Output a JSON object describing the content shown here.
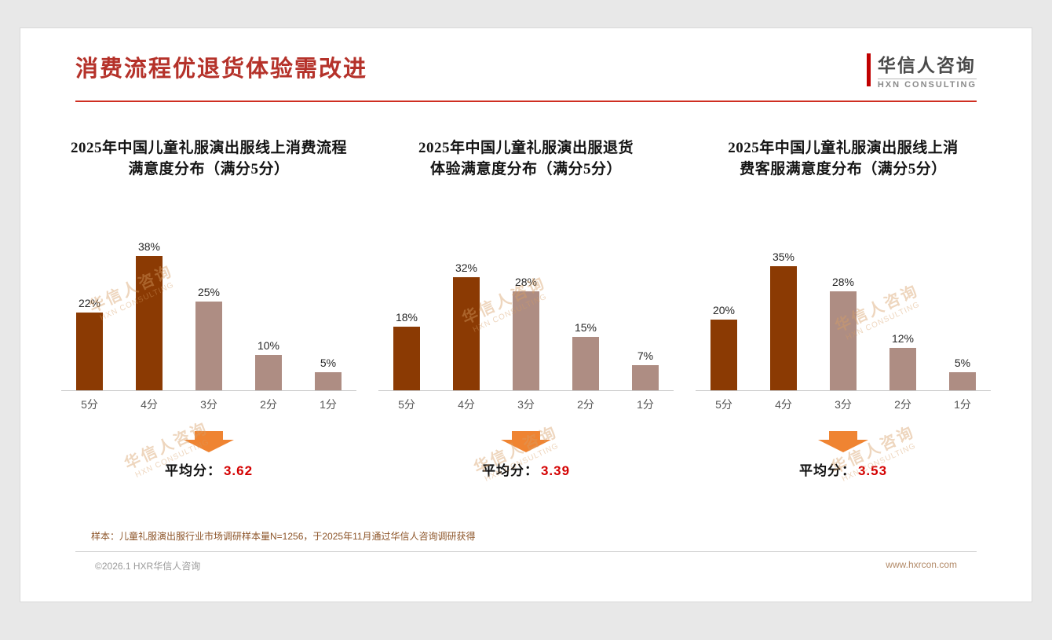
{
  "page": {
    "title": "消费流程优退货体验需改进",
    "logo": {
      "name": "华信人咨询",
      "sub": "HXN CONSULTING"
    },
    "watermark": {
      "line1": "华信人咨询",
      "line2": "HXN CONSULTING"
    },
    "footnote": "样本：儿童礼服演出服行业市场调研样本量N=1256，于2025年11月通过华信人咨询调研获得",
    "copyright": "©2026.1 HXR华信人咨询",
    "website": "www.hxrcon.com"
  },
  "colors": {
    "title": "#b5322a",
    "bar_dark": "#8b3a03",
    "bar_light": "#ae8d83",
    "arrow": "#ef8432",
    "avg_number": "#d40000"
  },
  "chart_data": [
    {
      "type": "bar",
      "title": "2025年中国儿童礼服演出服线上消费流程满意度分布（满分5分）",
      "title_lines": [
        "2025年中国儿童礼服演出服线上消费流程",
        "满意度分布（满分5分）"
      ],
      "categories": [
        "5分",
        "4分",
        "3分",
        "2分",
        "1分"
      ],
      "values": [
        22,
        38,
        25,
        10,
        5
      ],
      "unit": "%",
      "ylim": [
        0,
        40
      ],
      "grid": false,
      "bar_colors": [
        "dark",
        "dark",
        "light",
        "light",
        "light"
      ],
      "average_label": "平均分：",
      "average": "3.62"
    },
    {
      "type": "bar",
      "title": "2025年中国儿童礼服演出服退货体验满意度分布（满分5分）",
      "title_lines": [
        "2025年中国儿童礼服演出服退货",
        "体验满意度分布（满分5分）"
      ],
      "categories": [
        "5分",
        "4分",
        "3分",
        "2分",
        "1分"
      ],
      "values": [
        18,
        32,
        28,
        15,
        7
      ],
      "unit": "%",
      "ylim": [
        0,
        40
      ],
      "grid": false,
      "bar_colors": [
        "dark",
        "dark",
        "light",
        "light",
        "light"
      ],
      "average_label": "平均分：",
      "average": "3.39"
    },
    {
      "type": "bar",
      "title": "2025年中国儿童礼服演出服线上消费客服满意度分布（满分5分）",
      "title_lines": [
        "2025年中国儿童礼服演出服线上消",
        "费客服满意度分布（满分5分）"
      ],
      "categories": [
        "5分",
        "4分",
        "3分",
        "2分",
        "1分"
      ],
      "values": [
        20,
        35,
        28,
        12,
        5
      ],
      "unit": "%",
      "ylim": [
        0,
        40
      ],
      "grid": false,
      "bar_colors": [
        "dark",
        "dark",
        "light",
        "light",
        "light"
      ],
      "average_label": "平均分：",
      "average": "3.53"
    }
  ]
}
